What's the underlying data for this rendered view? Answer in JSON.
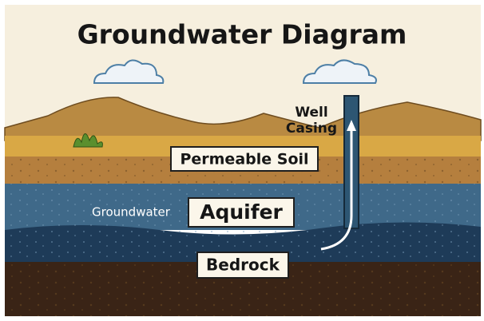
{
  "title": "Groundwater Diagram",
  "labels": {
    "well_casing": [
      "Well",
      "Casing"
    ],
    "permeable_soil": "Permeable Soil",
    "groundwater": "Groundwater",
    "aquifer": "Aquifer",
    "bedrock": "Bedrock"
  }
}
